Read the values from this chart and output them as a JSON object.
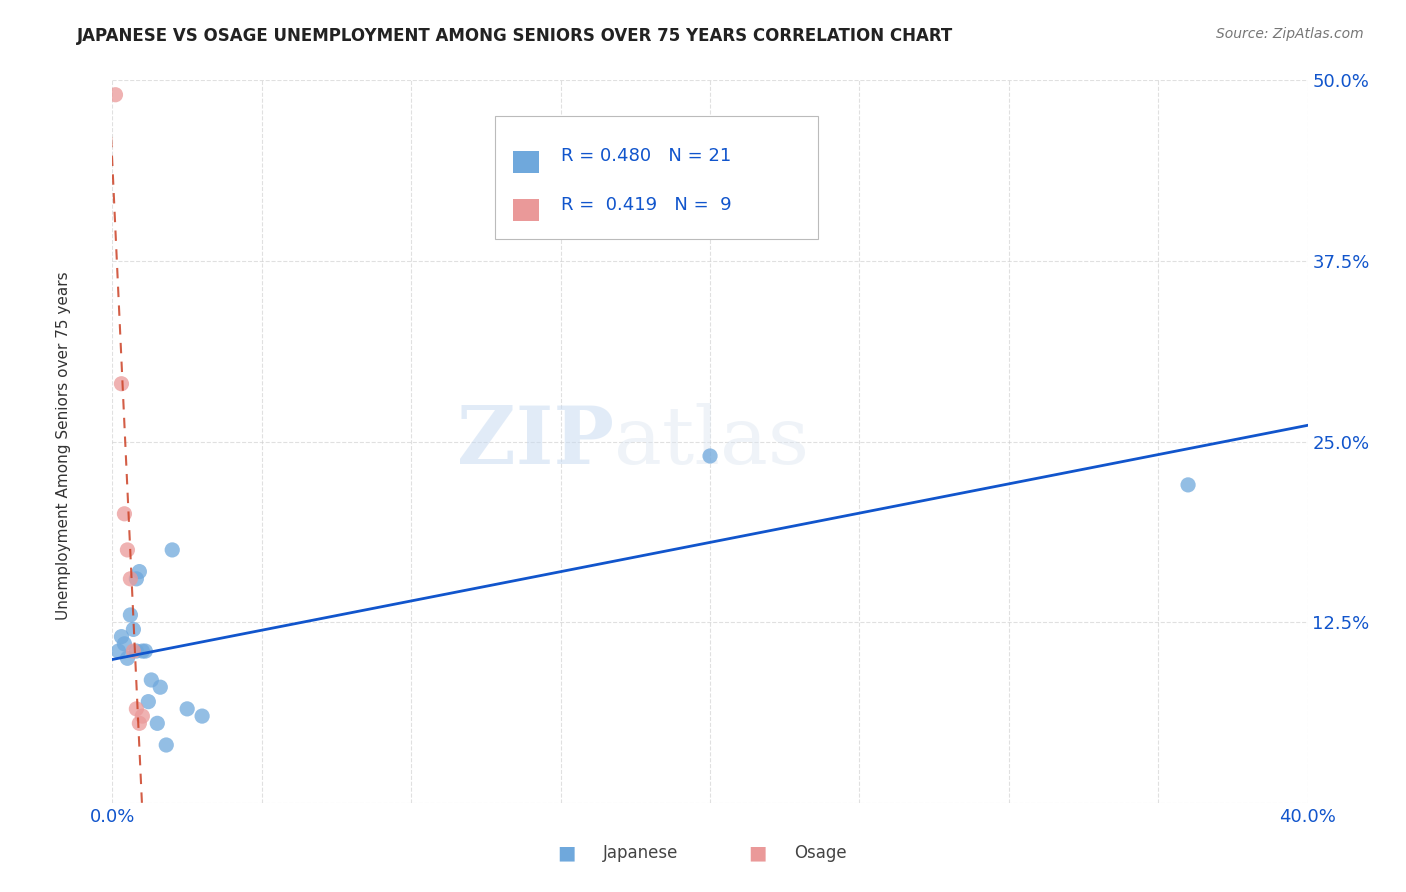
{
  "title": "JAPANESE VS OSAGE UNEMPLOYMENT AMONG SENIORS OVER 75 YEARS CORRELATION CHART",
  "source": "Source: ZipAtlas.com",
  "ylabel": "Unemployment Among Seniors over 75 years",
  "xlim": [
    0.0,
    0.4
  ],
  "ylim": [
    0.0,
    0.5
  ],
  "xticks": [
    0.0,
    0.05,
    0.1,
    0.15,
    0.2,
    0.25,
    0.3,
    0.35,
    0.4
  ],
  "yticks": [
    0.0,
    0.125,
    0.25,
    0.375,
    0.5
  ],
  "japanese_color": "#6fa8dc",
  "osage_color": "#ea9999",
  "trendline_japanese_color": "#1155cc",
  "trendline_osage_color": "#cc4125",
  "tick_color": "#1155cc",
  "legend_japanese_R": "0.480",
  "legend_japanese_N": "21",
  "legend_osage_R": "0.419",
  "legend_osage_N": "9",
  "watermark_zip": "ZIP",
  "watermark_atlas": "atlas",
  "japanese_x": [
    0.002,
    0.003,
    0.004,
    0.005,
    0.006,
    0.007,
    0.008,
    0.008,
    0.009,
    0.01,
    0.011,
    0.012,
    0.013,
    0.015,
    0.016,
    0.018,
    0.02,
    0.025,
    0.03,
    0.2,
    0.36
  ],
  "japanese_y": [
    0.105,
    0.115,
    0.11,
    0.1,
    0.13,
    0.12,
    0.155,
    0.105,
    0.16,
    0.105,
    0.105,
    0.07,
    0.085,
    0.055,
    0.08,
    0.04,
    0.175,
    0.065,
    0.06,
    0.24,
    0.22
  ],
  "osage_x": [
    0.001,
    0.003,
    0.004,
    0.005,
    0.006,
    0.007,
    0.008,
    0.009,
    0.01
  ],
  "osage_y": [
    0.49,
    0.29,
    0.2,
    0.175,
    0.155,
    0.105,
    0.065,
    0.055,
    0.06
  ],
  "background_color": "#ffffff",
  "grid_color": "#cccccc"
}
